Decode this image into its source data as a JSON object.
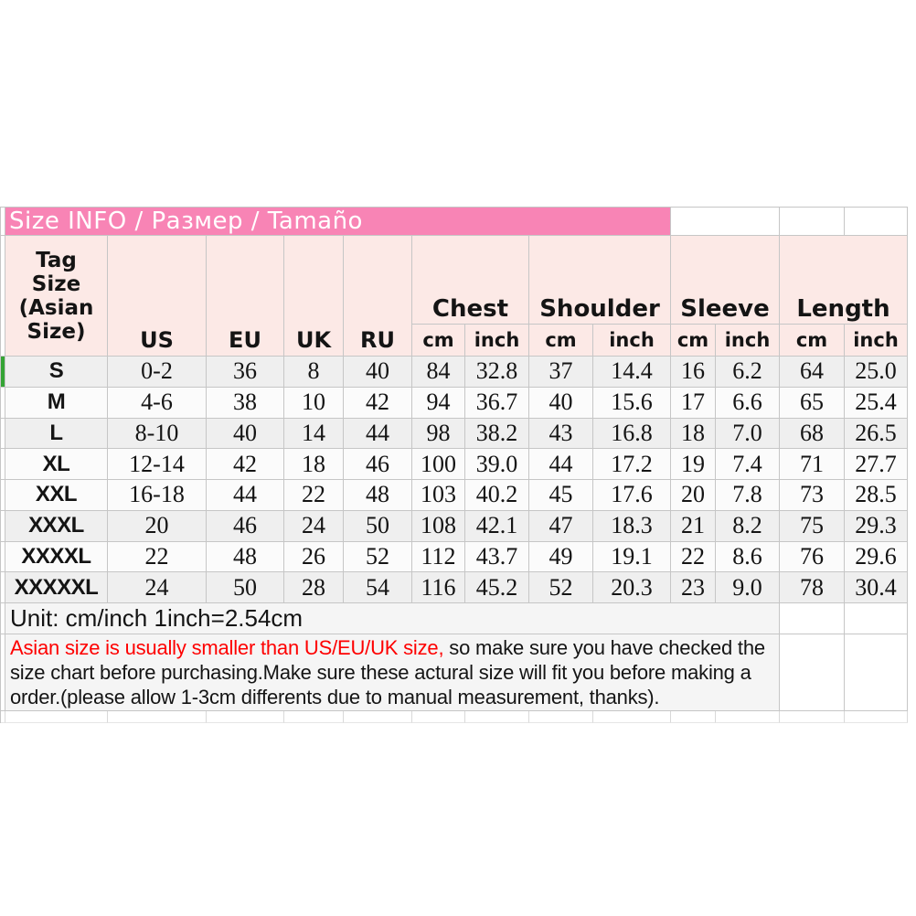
{
  "banner": {
    "title": "Size INFO / Размер / Tamaño"
  },
  "header": {
    "tag_lines": [
      "Tag",
      "Size",
      "(Asian",
      "Size)"
    ],
    "regions": {
      "us": "US",
      "eu": "EU",
      "uk": "UK",
      "ru": "RU"
    },
    "groups": {
      "chest": "Chest",
      "shoulder": "Shoulder",
      "sleeve": "Sleeve",
      "length": "Length"
    },
    "unit_cm": "cm",
    "unit_inch": "inch"
  },
  "size_table": {
    "rows": [
      {
        "tag": "S",
        "us": "0-2",
        "eu": "36",
        "uk": "8",
        "ru": "40",
        "chest_cm": "84",
        "chest_inch": "32.8",
        "shoulder_cm": "37",
        "shoulder_inch": "14.4",
        "sleeve_cm": "16",
        "sleeve_inch": "6.2",
        "length_cm": "64",
        "length_inch": "25.0"
      },
      {
        "tag": "M",
        "us": "4-6",
        "eu": "38",
        "uk": "10",
        "ru": "42",
        "chest_cm": "94",
        "chest_inch": "36.7",
        "shoulder_cm": "40",
        "shoulder_inch": "15.6",
        "sleeve_cm": "17",
        "sleeve_inch": "6.6",
        "length_cm": "65",
        "length_inch": "25.4"
      },
      {
        "tag": "L",
        "us": "8-10",
        "eu": "40",
        "uk": "14",
        "ru": "44",
        "chest_cm": "98",
        "chest_inch": "38.2",
        "shoulder_cm": "43",
        "shoulder_inch": "16.8",
        "sleeve_cm": "18",
        "sleeve_inch": "7.0",
        "length_cm": "68",
        "length_inch": "26.5"
      },
      {
        "tag": "XL",
        "us": "12-14",
        "eu": "42",
        "uk": "18",
        "ru": "46",
        "chest_cm": "100",
        "chest_inch": "39.0",
        "shoulder_cm": "44",
        "shoulder_inch": "17.2",
        "sleeve_cm": "19",
        "sleeve_inch": "7.4",
        "length_cm": "71",
        "length_inch": "27.7"
      },
      {
        "tag": "XXL",
        "us": "16-18",
        "eu": "44",
        "uk": "22",
        "ru": "48",
        "chest_cm": "103",
        "chest_inch": "40.2",
        "shoulder_cm": "45",
        "shoulder_inch": "17.6",
        "sleeve_cm": "20",
        "sleeve_inch": "7.8",
        "length_cm": "73",
        "length_inch": "28.5"
      },
      {
        "tag": "XXXL",
        "us": "20",
        "eu": "46",
        "uk": "24",
        "ru": "50",
        "chest_cm": "108",
        "chest_inch": "42.1",
        "shoulder_cm": "47",
        "shoulder_inch": "18.3",
        "sleeve_cm": "21",
        "sleeve_inch": "8.2",
        "length_cm": "75",
        "length_inch": "29.3"
      },
      {
        "tag": "XXXXL",
        "us": "22",
        "eu": "48",
        "uk": "26",
        "ru": "52",
        "chest_cm": "112",
        "chest_inch": "43.7",
        "shoulder_cm": "49",
        "shoulder_inch": "19.1",
        "sleeve_cm": "22",
        "sleeve_inch": "8.6",
        "length_cm": "76",
        "length_inch": "29.6"
      },
      {
        "tag": "XXXXXL",
        "us": "24",
        "eu": "50",
        "uk": "28",
        "ru": "54",
        "chest_cm": "116",
        "chest_inch": "45.2",
        "shoulder_cm": "52",
        "shoulder_inch": "20.3",
        "sleeve_cm": "23",
        "sleeve_inch": "9.0",
        "length_cm": "78",
        "length_inch": "30.4"
      }
    ]
  },
  "footer": {
    "unit_note": "Unit: cm/inch 1inch=2.54cm",
    "disclaimer_line1_red": "Asian size is usually smaller than US/EU/UK size,",
    "disclaimer_line1_rest": " so make sure you have checked the",
    "disclaimer_line2": "size chart before purchasing.Make sure these actural size will fit you before making a",
    "disclaimer_line3": "order.(please allow 1-3cm differents due to manual measurement, thanks)."
  },
  "colors": {
    "banner_pink": "#f884b5",
    "header_pink": "#fce9e6",
    "grid_line": "#c6c6c6",
    "row_shaded": "#efefef",
    "row_plain": "#fbfbfb",
    "note_bg": "#f5f5f5",
    "red_text": "#fe0000",
    "green_marker": "#35a435"
  }
}
